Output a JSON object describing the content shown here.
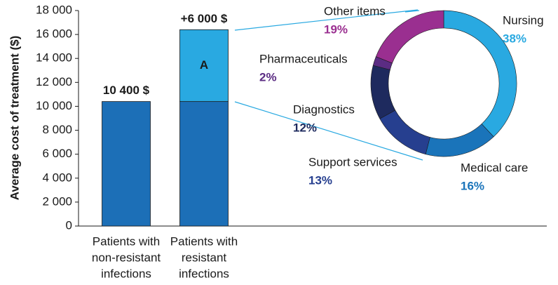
{
  "chart_data": [
    {
      "type": "bar",
      "stacked": true,
      "y_label": "Average cost of treatment ($)",
      "categories": [
        [
          "Patients with",
          "non-resistant",
          "infections"
        ],
        [
          "Patients with",
          "resistant",
          "infections"
        ]
      ],
      "series": [
        {
          "color": "#1c6fb7",
          "values": [
            10400,
            10400
          ],
          "value_labels": [
            "10 400 $",
            null
          ]
        },
        {
          "color": "#29a9e1",
          "values": [
            null,
            6000
          ],
          "value_labels": [
            null,
            "+6 000 $"
          ],
          "segment_labels": [
            null,
            "A"
          ]
        }
      ],
      "ylim": [
        0,
        18000
      ],
      "yticks": [
        0,
        {
          "value": 2000,
          "label": "2 000"
        },
        {
          "value": 4000,
          "label": "4 000"
        },
        {
          "value": 6000,
          "label": "6 000"
        },
        {
          "value": 8000,
          "label": "8 000"
        },
        {
          "value": 10000,
          "label": "10 000"
        },
        {
          "value": 12000,
          "label": "12 000"
        },
        {
          "value": 14000,
          "label": "14 000"
        },
        {
          "value": 16000,
          "label": "16 000"
        },
        {
          "value": 18000,
          "label": "18 000"
        }
      ]
    },
    {
      "type": "donut",
      "categories": [
        "Nursing",
        "Medical care",
        "Support services",
        "Diagnostics",
        "Pharmaceuticals",
        "Other items"
      ],
      "values": [
        38,
        16,
        13,
        12,
        2,
        19
      ],
      "value_labels": [
        "38%",
        "16%",
        "13%",
        "12%",
        "2%",
        "19%"
      ],
      "colors": [
        "#29a9e1",
        "#1a74ba",
        "#263f8f",
        "#1e2a5e",
        "#5b2c83",
        "#9a2f90"
      ]
    }
  ]
}
